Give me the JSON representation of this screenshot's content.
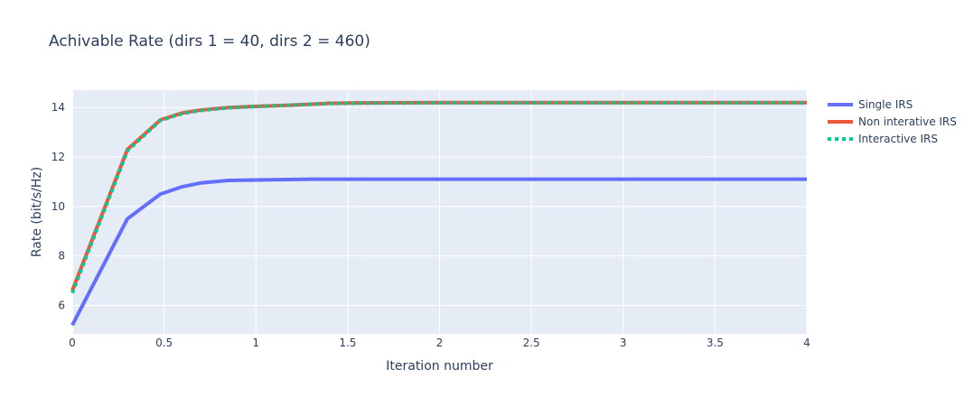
{
  "chart_data": {
    "type": "line",
    "title": "Achivable Rate (dirs 1 = 40, dirs 2 = 460)",
    "xlabel": "Iteration number",
    "ylabel": "Rate (bit/s/Hz)",
    "xlim": [
      0,
      4
    ],
    "ylim": [
      4.85,
      14.7
    ],
    "x_ticks": [
      0,
      0.5,
      1,
      1.5,
      2,
      2.5,
      3,
      3.5,
      4
    ],
    "x_tick_labels": [
      "0",
      "0.5",
      "1",
      "1.5",
      "2",
      "2.5",
      "3",
      "3.5",
      "4"
    ],
    "y_ticks": [
      6,
      8,
      10,
      12,
      14
    ],
    "y_tick_labels": [
      "6",
      "8",
      "10",
      "12",
      "14"
    ],
    "grid": true,
    "legend_position": "right",
    "series": [
      {
        "name": "Single IRS",
        "color": "#636efa",
        "dash": "solid",
        "x": [
          0,
          0.3,
          0.48,
          0.6,
          0.7,
          0.85,
          1.0,
          1.3,
          1.5,
          2.0,
          2.5,
          3.0,
          3.5,
          4.0
        ],
        "y": [
          5.2,
          9.5,
          10.5,
          10.8,
          10.95,
          11.05,
          11.07,
          11.1,
          11.1,
          11.1,
          11.1,
          11.1,
          11.1,
          11.1
        ]
      },
      {
        "name": "Non interative IRS",
        "color": "#ef553b",
        "dash": "solid",
        "x": [
          0,
          0.3,
          0.48,
          0.6,
          0.7,
          0.85,
          1.0,
          1.2,
          1.4,
          1.6,
          2.0,
          2.5,
          3.0,
          3.5,
          4.0
        ],
        "y": [
          6.6,
          12.3,
          13.5,
          13.78,
          13.9,
          14.0,
          14.05,
          14.1,
          14.17,
          14.19,
          14.2,
          14.2,
          14.2,
          14.2,
          14.2
        ]
      },
      {
        "name": "Interactive IRS",
        "color": "#00cc96",
        "dash": "dot",
        "x": [
          0,
          0.3,
          0.48,
          0.6,
          0.7,
          0.85,
          1.0,
          1.2,
          1.4,
          1.6,
          2.0,
          2.5,
          3.0,
          3.5,
          4.0
        ],
        "y": [
          6.5,
          12.25,
          13.48,
          13.76,
          13.88,
          13.99,
          14.04,
          14.1,
          14.16,
          14.18,
          14.19,
          14.19,
          14.19,
          14.19,
          14.19
        ]
      }
    ]
  }
}
